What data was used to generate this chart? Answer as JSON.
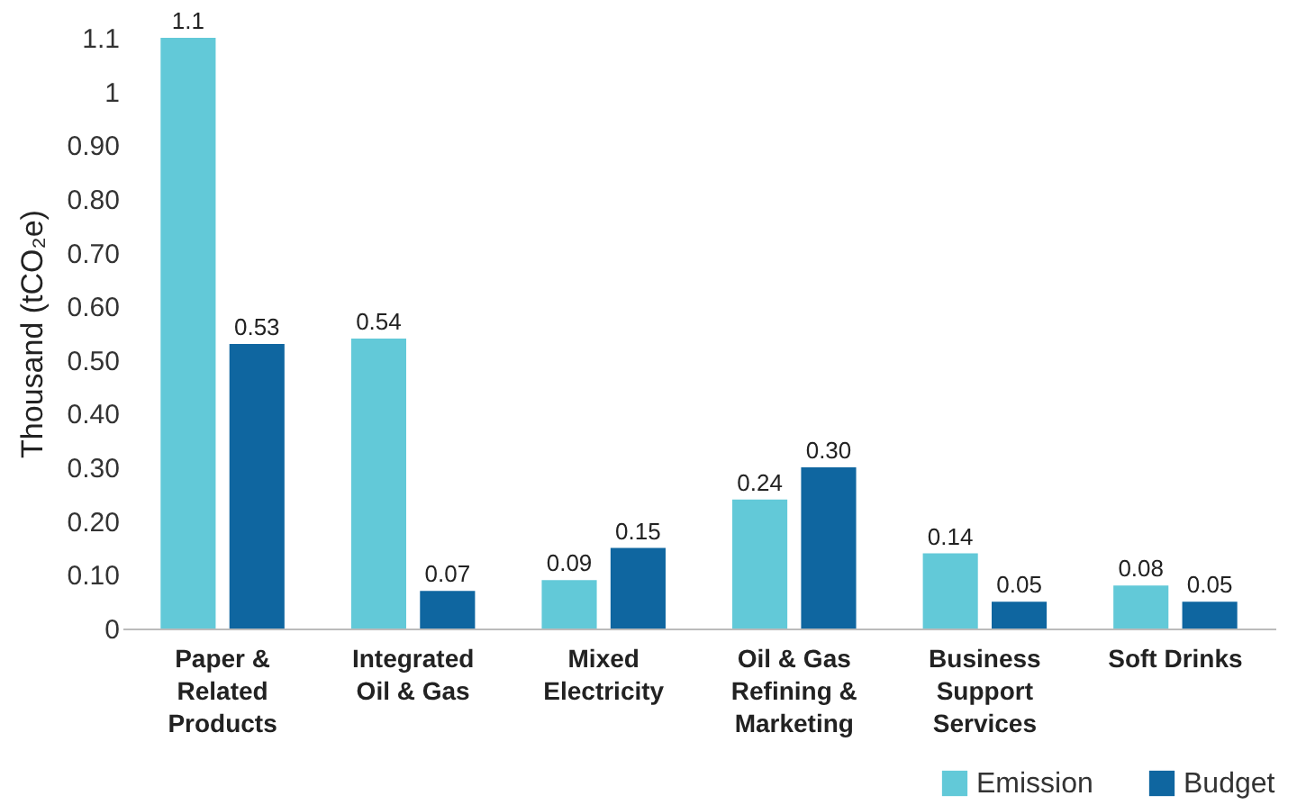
{
  "chart_data": {
    "type": "bar",
    "ylabel": "Thousand (tCO₂e)",
    "categories": [
      "Paper & Related Products",
      "Integrated Oil & Gas",
      "Mixed Electricity",
      "Oil & Gas Refining & Marketing",
      "Business Support Services",
      "Soft Drinks"
    ],
    "series": [
      {
        "name": "Emission",
        "color": "#62c9d8",
        "values": [
          1.1,
          0.54,
          0.09,
          0.24,
          0.14,
          0.08
        ],
        "value_labels": [
          "1.1",
          "0.54",
          "0.09",
          "0.24",
          "0.14",
          "0.08"
        ]
      },
      {
        "name": "Budget",
        "color": "#0f66a0",
        "values": [
          0.53,
          0.07,
          0.15,
          0.3,
          0.05,
          0.05
        ],
        "value_labels": [
          "0.53",
          "0.07",
          "0.15",
          "0.30",
          "0.05",
          "0.05"
        ]
      }
    ],
    "ylim": [
      0,
      1.1
    ],
    "yticks": [
      0,
      {
        "value": 0.1,
        "label": "0.10"
      },
      {
        "value": 0.2,
        "label": "0.20"
      },
      {
        "value": 0.3,
        "label": "0.30"
      },
      {
        "value": 0.4,
        "label": "0.40"
      },
      {
        "value": 0.5,
        "label": "0.50"
      },
      {
        "value": 0.6,
        "label": "0.60"
      },
      {
        "value": 0.7,
        "label": "0.70"
      },
      {
        "value": 0.8,
        "label": "0.80"
      },
      {
        "value": 0.9,
        "label": "0.90"
      },
      1,
      1.1
    ],
    "grid": false,
    "legend": "bottom right"
  }
}
